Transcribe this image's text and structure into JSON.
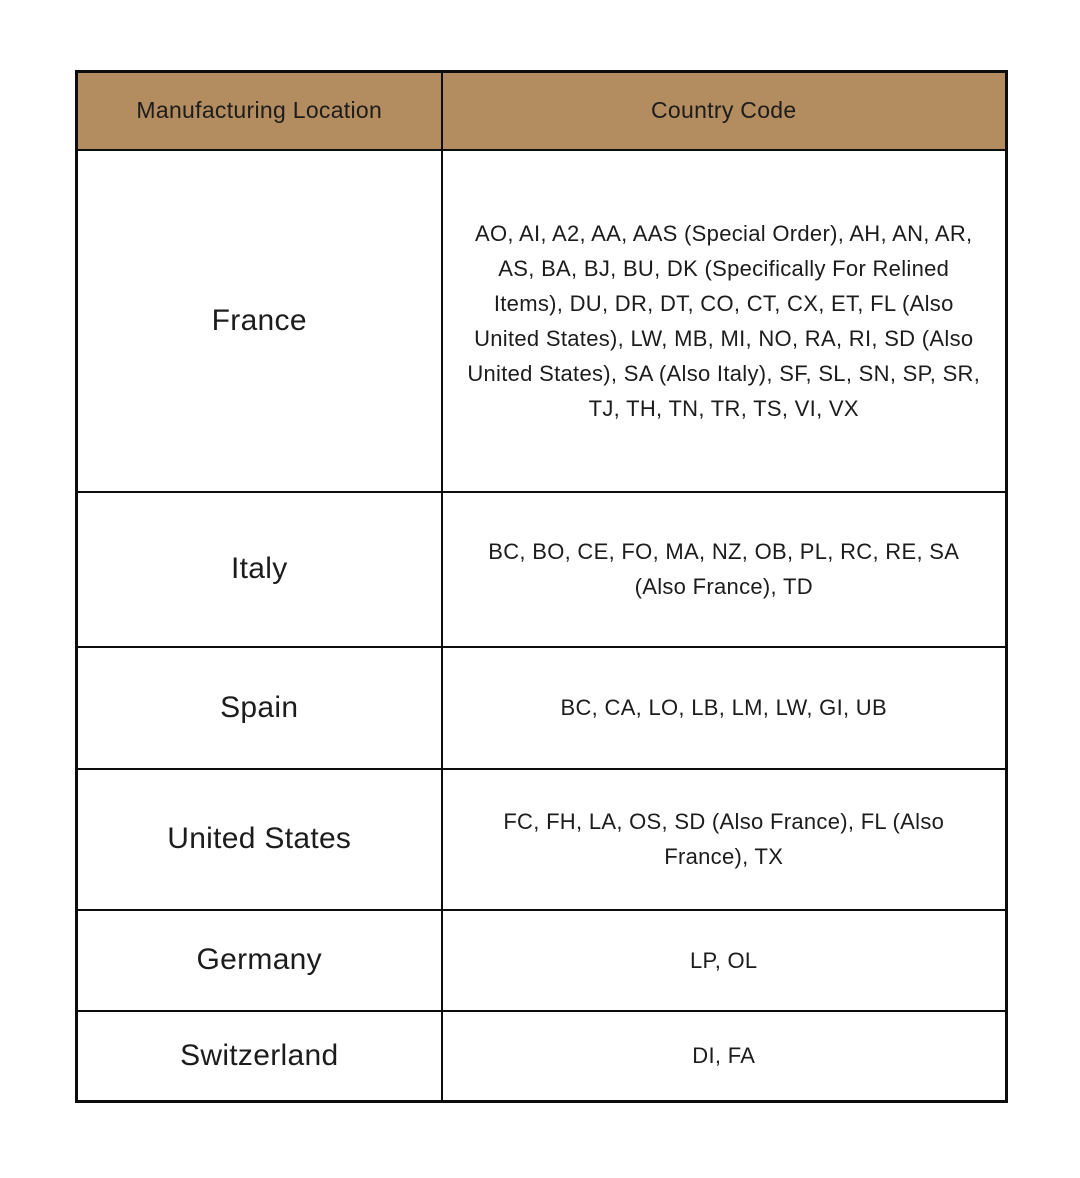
{
  "colors": {
    "header_bg": "#b38d5f",
    "border": "#0d0d0d",
    "text": "#1c1c1c"
  },
  "table": {
    "headers": [
      {
        "label": "Manufacturing Location"
      },
      {
        "label": "Country Code"
      }
    ],
    "rows": [
      {
        "location": "France",
        "codes": "AO, AI, A2, AA, AAS (Special Order), AH, AN, AR, AS, BA, BJ, BU, DK (Specifically For Relined Items), DU, DR, DT, CO, CT, CX, ET, FL (Also United States), LW, MB, MI, NO, RA, RI, SD (Also United States), SA (Also Italy), SF, SL, SN, SP, SR, TJ, TH, TN, TR, TS, VI, VX"
      },
      {
        "location": "Italy",
        "codes": "BC, BO, CE, FO, MA, NZ, OB, PL, RC, RE, SA (Also France), TD"
      },
      {
        "location": "Spain",
        "codes": "BC, CA, LO, LB, LM, LW, GI, UB"
      },
      {
        "location": "United States",
        "codes": "FC, FH, LA, OS, SD (Also France), FL (Also France), TX"
      },
      {
        "location": "Germany",
        "codes": "LP, OL"
      },
      {
        "location": "Switzerland",
        "codes": "DI, FA"
      }
    ]
  }
}
